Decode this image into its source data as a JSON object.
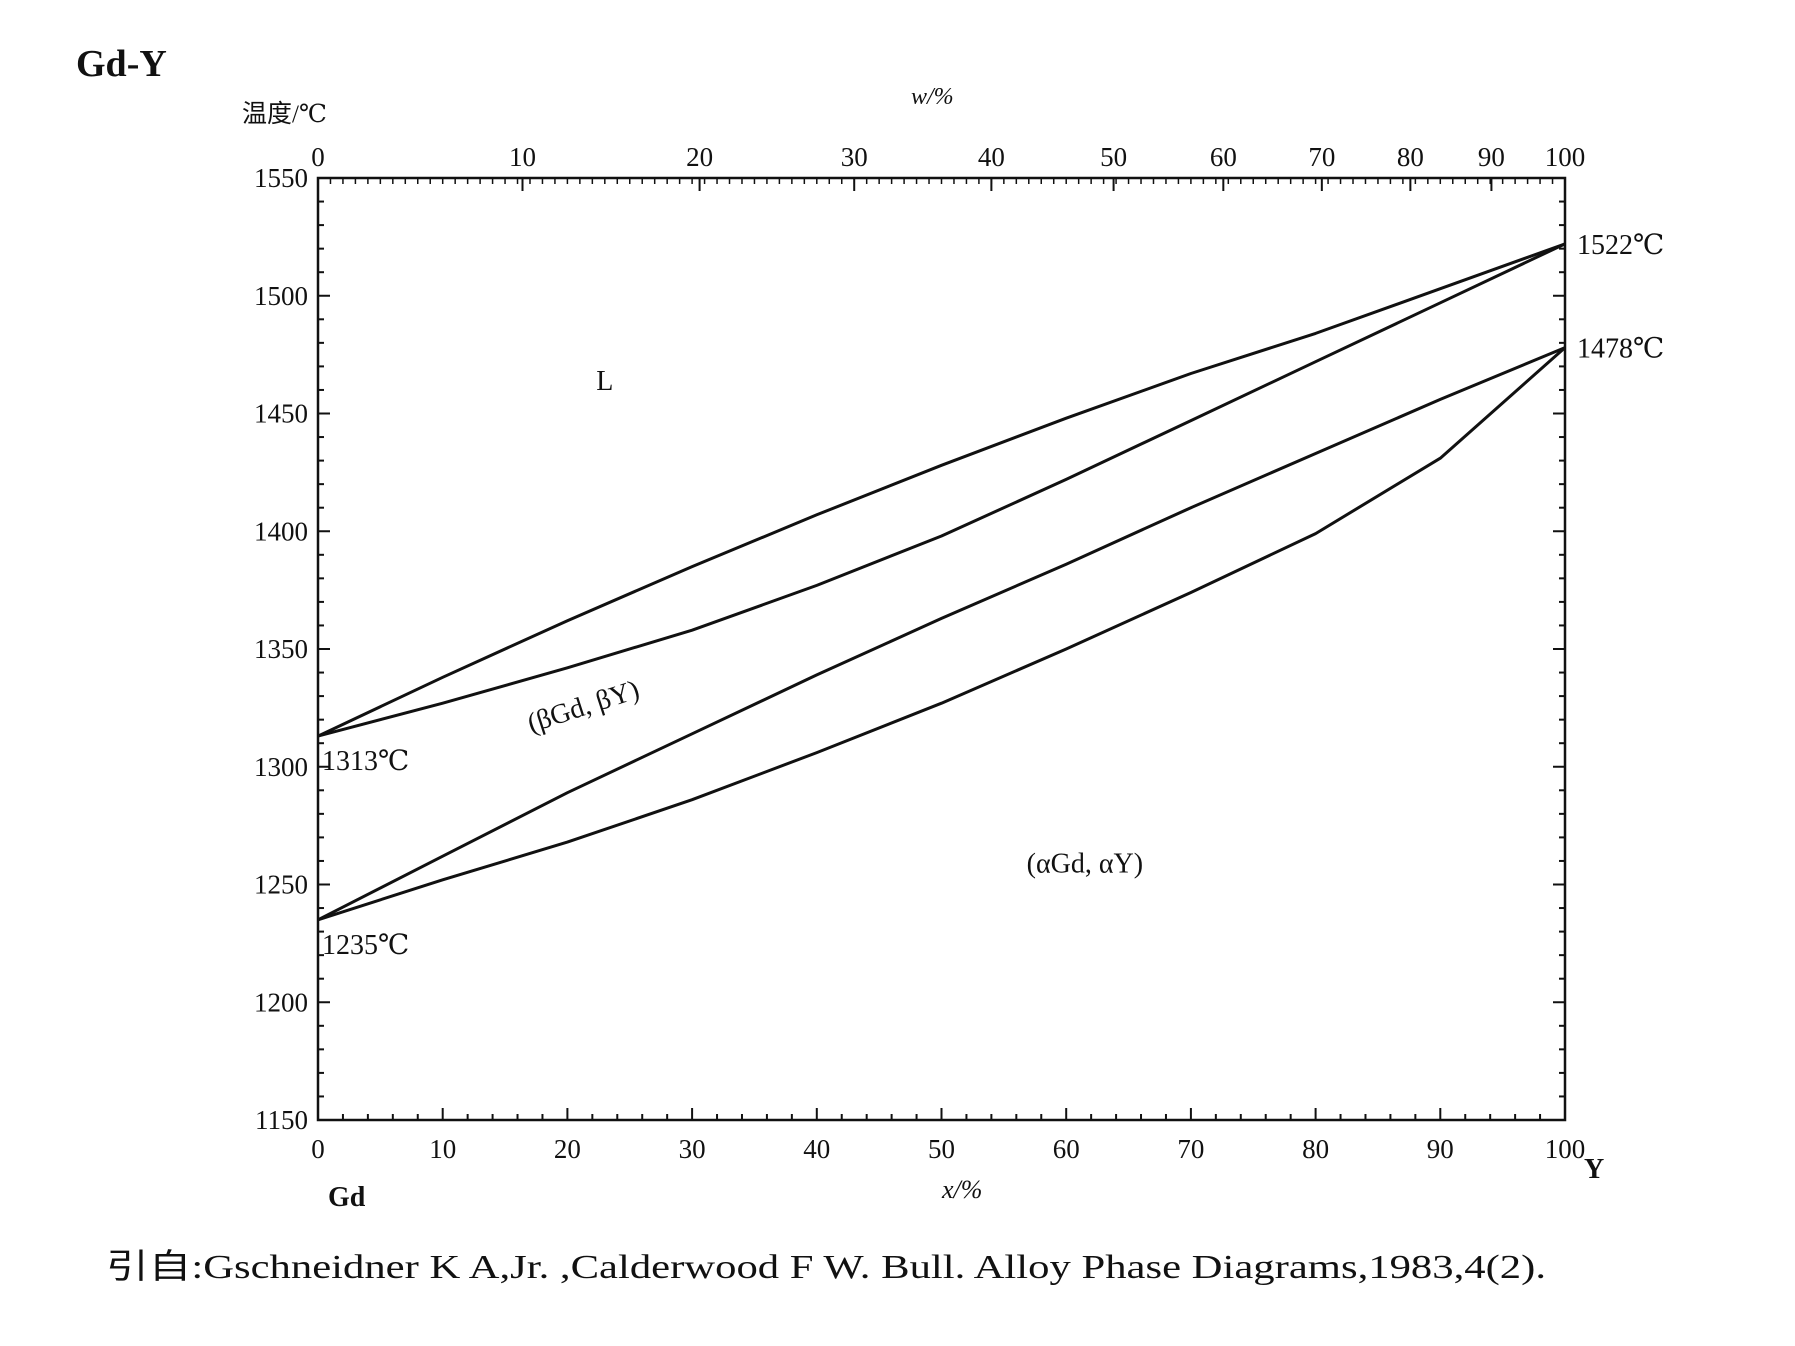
{
  "title": "Gd-Y",
  "chart_data": {
    "type": "line",
    "ylabel": "温度/℃",
    "xlabel": "x/%",
    "top_xlabel": "w/%",
    "x_left_element": "Gd",
    "x_right_element": "Y",
    "xlim": [
      0,
      100
    ],
    "ylim": [
      1150,
      1550
    ],
    "x_ticks": [
      "0",
      "10",
      "20",
      "30",
      "40",
      "50",
      "60",
      "70",
      "80",
      "90",
      "100"
    ],
    "top_ticks": [
      {
        "label": "0",
        "x": 0
      },
      {
        "label": "10",
        "x": 16.4
      },
      {
        "label": "20",
        "x": 30.6
      },
      {
        "label": "30",
        "x": 43.0
      },
      {
        "label": "40",
        "x": 54.0
      },
      {
        "label": "50",
        "x": 63.8
      },
      {
        "label": "60",
        "x": 72.6
      },
      {
        "label": "70",
        "x": 80.5
      },
      {
        "label": "80",
        "x": 87.6
      },
      {
        "label": "90",
        "x": 94.1
      },
      {
        "label": "100",
        "x": 100
      }
    ],
    "y_ticks": [
      "1550",
      "1500",
      "1450",
      "1400",
      "1350",
      "1300",
      "1250",
      "1200",
      "1150"
    ],
    "series": [
      {
        "values": [
          [
            0,
            1313
          ],
          [
            10,
            1338
          ],
          [
            20,
            1362
          ],
          [
            30,
            1385
          ],
          [
            40,
            1407
          ],
          [
            50,
            1428
          ],
          [
            60,
            1448
          ],
          [
            70,
            1467
          ],
          [
            80,
            1484
          ],
          [
            90,
            1503
          ],
          [
            100,
            1522
          ]
        ]
      },
      {
        "values": [
          [
            0,
            1313
          ],
          [
            10,
            1327
          ],
          [
            20,
            1342
          ],
          [
            30,
            1358
          ],
          [
            40,
            1377
          ],
          [
            50,
            1398
          ],
          [
            60,
            1422
          ],
          [
            70,
            1447
          ],
          [
            80,
            1472
          ],
          [
            90,
            1497
          ],
          [
            100,
            1522
          ]
        ]
      },
      {
        "values": [
          [
            0,
            1235
          ],
          [
            10,
            1262
          ],
          [
            20,
            1289
          ],
          [
            30,
            1314
          ],
          [
            40,
            1339
          ],
          [
            50,
            1363
          ],
          [
            60,
            1386
          ],
          [
            70,
            1410
          ],
          [
            80,
            1433
          ],
          [
            90,
            1456
          ],
          [
            100,
            1478
          ]
        ]
      },
      {
        "values": [
          [
            0,
            1235
          ],
          [
            10,
            1252
          ],
          [
            20,
            1268
          ],
          [
            30,
            1286
          ],
          [
            40,
            1306
          ],
          [
            50,
            1327
          ],
          [
            60,
            1350
          ],
          [
            70,
            1374
          ],
          [
            80,
            1399
          ],
          [
            90,
            1431
          ],
          [
            100,
            1478
          ]
        ]
      }
    ],
    "annotations": [
      {
        "text": "L",
        "x": 23,
        "y": 1460
      },
      {
        "text": "(βGd, βY)",
        "x": 21.5,
        "y": 1322
      },
      {
        "text": "(αGd, αY)",
        "x": 61.5,
        "y": 1255
      },
      {
        "text": "1313℃",
        "x": 0,
        "y": 1313
      },
      {
        "text": "1235℃",
        "x": 0,
        "y": 1235
      },
      {
        "text": "1522℃",
        "x": 100,
        "y": 1522
      },
      {
        "text": "1478℃",
        "x": 100,
        "y": 1478
      }
    ]
  },
  "citation": "引自:Gschneidner K A,Jr. ,Calderwood F W. Bull.  Alloy Phase Diagrams,1983,4(2)."
}
